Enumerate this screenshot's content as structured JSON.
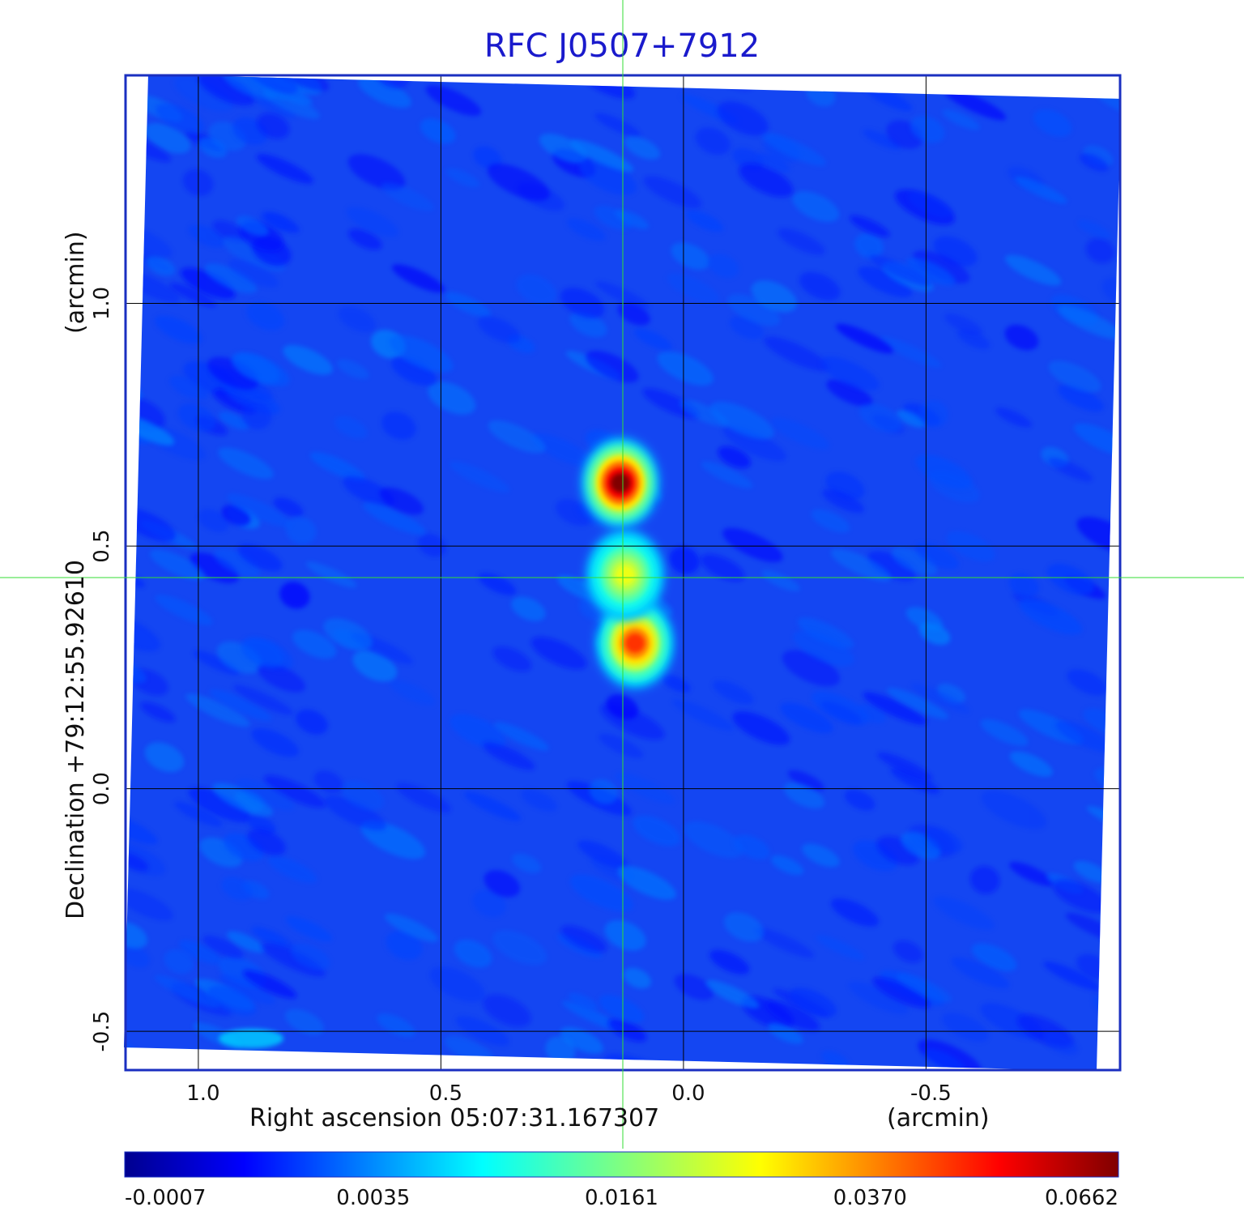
{
  "chart_data": {
    "type": "heatmap",
    "title": "RFC J0507+7912",
    "xlabel": "Right ascension  05:07:31.167307",
    "xunit": "(arcmin)",
    "ylabel": "Declination  +79:12:55.92610",
    "yunit": "(arcmin)",
    "x_ticks": [
      1.0,
      0.5,
      0.0,
      -0.5
    ],
    "x_tick_labels": [
      "1.0",
      "0.5",
      "0.0",
      "-0.5"
    ],
    "y_ticks": [
      1.0,
      0.5,
      0.0,
      -0.5
    ],
    "y_tick_labels": [
      "1.0",
      "0.5",
      "0.0",
      "-0.5"
    ],
    "xlim": [
      1.15,
      -0.9
    ],
    "ylim": [
      -0.58,
      1.47
    ],
    "grid": true,
    "crosshair": {
      "x": 0.125,
      "y": 0.435
    },
    "colormap": "jet",
    "colorbar_ticks": [
      "-0.0007",
      "0.0035",
      "0.0161",
      "0.0370",
      "0.0662"
    ],
    "sources": [
      {
        "x": 0.13,
        "y": 0.63,
        "peak": 0.0662
      },
      {
        "x": 0.1,
        "y": 0.3,
        "peak": 0.045
      },
      {
        "x": 0.12,
        "y": 0.44,
        "peak": 0.024
      }
    ],
    "background_level": 0.0015
  },
  "colors": {
    "title": "#1a1acc",
    "frame": "#1a2fc0",
    "crosshair": "#33dd33",
    "grid": "#000000"
  }
}
